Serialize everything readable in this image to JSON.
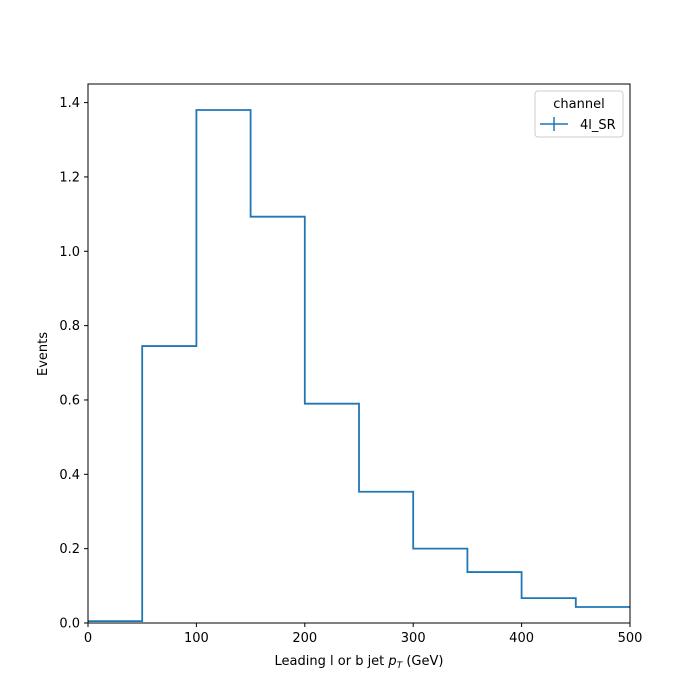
{
  "chart_data": {
    "type": "line",
    "style": "step-histogram",
    "xlabel": "Leading l or b jet",
    "xlabel_symbol": "p",
    "xlabel_subscript": "T",
    "xlabel_unit": "(GeV)",
    "ylabel": "Events",
    "xlim": [
      0,
      500
    ],
    "ylim": [
      0,
      1.45
    ],
    "x_ticks": [
      0,
      100,
      200,
      300,
      400,
      500
    ],
    "y_ticks": [
      "0.0",
      "0.2",
      "0.4",
      "0.6",
      "0.8",
      "1.0",
      "1.2",
      "1.4"
    ],
    "grid": false,
    "legend": {
      "title": "channel",
      "placement": "top-right"
    },
    "bin_edges": [
      0,
      50,
      100,
      150,
      200,
      250,
      300,
      350,
      400,
      450,
      500
    ],
    "series": [
      {
        "name": "4l_SR",
        "color": "#1f77b4",
        "values": [
          0.005,
          0.745,
          1.38,
          1.093,
          0.59,
          0.353,
          0.2,
          0.137,
          0.067,
          0.043
        ]
      }
    ]
  }
}
